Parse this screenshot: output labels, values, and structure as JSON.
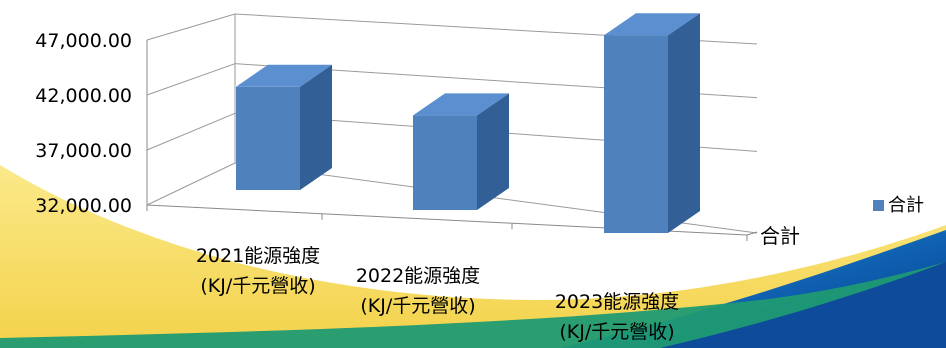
{
  "chart_data": {
    "type": "bar",
    "style": "3d-column",
    "categories": [
      [
        "2021能源強度",
        "(KJ/千元營收)"
      ],
      [
        "2022能源強度",
        "(KJ/千元營收)"
      ],
      [
        "2023能源強度",
        "(KJ/千元營收)"
      ]
    ],
    "series": [
      {
        "name": "合計",
        "values": [
          38000,
          37500,
          43500
        ],
        "color": "#4f81bd"
      }
    ],
    "depth_axis_label": "合計",
    "y_ticks": [
      "47,000.00",
      "42,000.00",
      "37,000.00",
      "32,000.00"
    ],
    "ylim": [
      32000,
      47000
    ],
    "grid": true,
    "legend_position": "right"
  },
  "colors": {
    "background_yellow": "#f7de63",
    "background_green": "#1f9a73",
    "background_blue_dark": "#0e4b9a",
    "background_blue_light": "#19a6e6",
    "bar_front": "#4f81bd",
    "bar_top": "#5b8fd0",
    "bar_side": "#335f97"
  }
}
